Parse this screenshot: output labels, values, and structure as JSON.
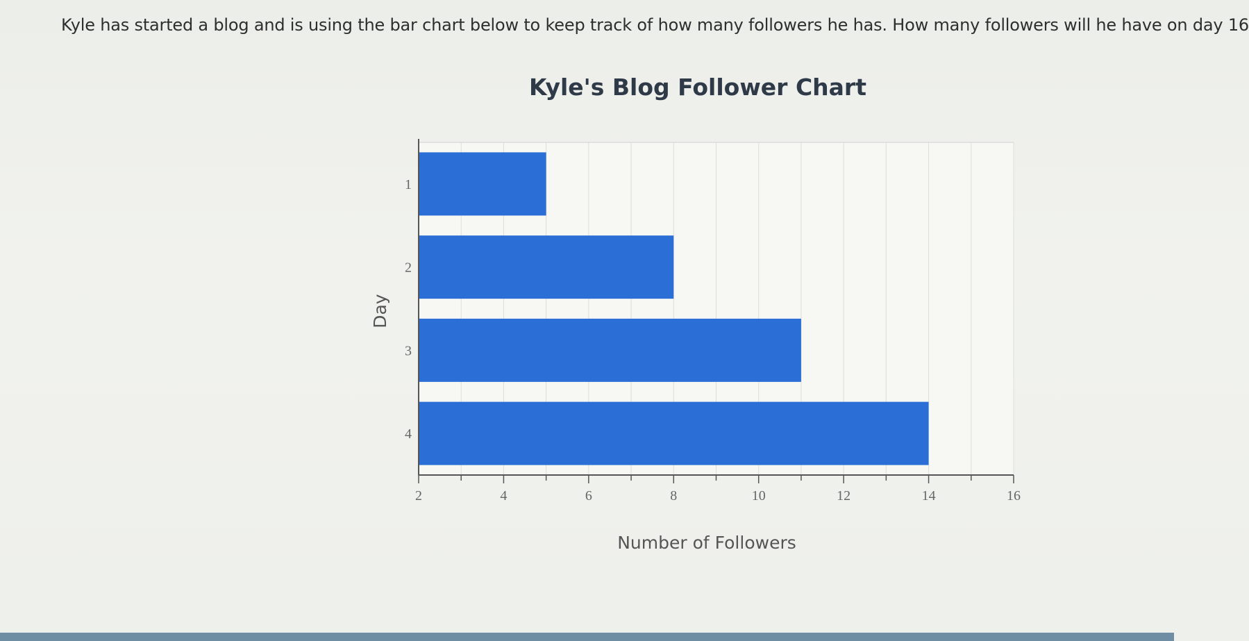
{
  "question": {
    "text": "Kyle has started a blog and is using the bar chart below to keep track of how many followers he has. How many followers will he have on day 16"
  },
  "chart_data": {
    "type": "bar",
    "orientation": "horizontal",
    "title": "Kyle's Blog Follower Chart",
    "xlabel": "Number of Followers",
    "ylabel": "Day",
    "categories": [
      "1",
      "2",
      "3",
      "4"
    ],
    "values": [
      5,
      8,
      11,
      14
    ],
    "xlim": [
      2,
      16
    ],
    "x_ticks": [
      2,
      4,
      6,
      8,
      10,
      12,
      14,
      16
    ],
    "grid": "vertical",
    "bar_color": "#2b6fd6"
  }
}
